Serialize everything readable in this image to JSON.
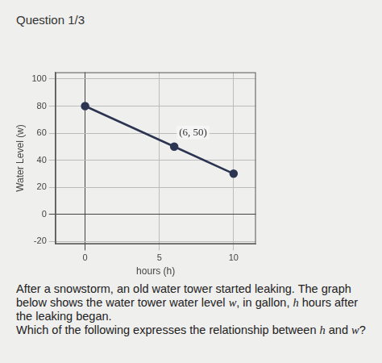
{
  "page": {
    "heading": "Question 1/3",
    "paragraphs": [
      "After a snowstorm, an old water tower started leaking. The graph below shows the water tower water level w, in gallon, h hours after the leaking began.",
      "Which of the following expresses the relationship between h and w?"
    ]
  },
  "chart_data": {
    "type": "line",
    "x_label": "hours (h)",
    "y_label": "Water Level (w)",
    "x": [
      0,
      6,
      10
    ],
    "values": [
      80,
      50,
      30
    ],
    "color": "#2b3450",
    "marker": "circle",
    "line_style": "solid",
    "annotations": [
      {
        "text": "(6, 50)",
        "x": 6,
        "y": 50
      }
    ],
    "xlim": [
      -2,
      11.5
    ],
    "xticks": [
      0,
      5,
      10
    ],
    "ylim": [
      -22,
      105
    ],
    "yticks": [
      -20,
      0,
      20,
      40,
      60,
      80,
      100
    ],
    "grid": true
  }
}
